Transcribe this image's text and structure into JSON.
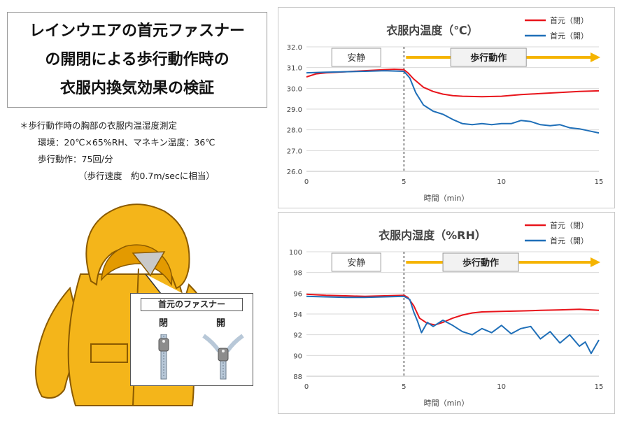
{
  "title": {
    "lines": [
      "レインウエアの首元ファスナー",
      "の開閉による歩行動作時の",
      "衣服内換気効果の検証"
    ]
  },
  "notes": {
    "line1": "＊歩行動作時の胸部の衣服内温湿度測定",
    "line2": "環境：20℃×65%RH、マネキン温度：36℃",
    "line3": "歩行動作：75回/分",
    "line4": "（歩行速度　約0.7m/secに相当）"
  },
  "zipper_callout": {
    "title": "首元のファスナー",
    "closed_label": "閉",
    "open_label": "開"
  },
  "colors": {
    "closed": "#e8141b",
    "open": "#1f6fb8",
    "arrow": "#f5b400",
    "raincoat": "#f4b51a"
  },
  "chart_data": [
    {
      "type": "line",
      "title": "衣服内温度（℃）",
      "xlabel": "時間（min）",
      "ylabel": "",
      "xlim": [
        0,
        15
      ],
      "ylim": [
        26.0,
        32.0
      ],
      "xticks": [
        "0",
        "5",
        "10",
        "15"
      ],
      "yticks": [
        "26.0",
        "27.0",
        "28.0",
        "29.0",
        "30.0",
        "31.0",
        "32.0"
      ],
      "grid": true,
      "legend_position": "top-right",
      "phase_labels": {
        "rest": "安静",
        "walk": "歩行動作"
      },
      "phase_change_x": 5,
      "series": [
        {
          "name": "首元（閉）",
          "color": "#e8141b",
          "x": [
            0,
            0.5,
            1,
            2,
            3,
            4,
            4.5,
            5,
            5.2,
            5.5,
            6,
            6.5,
            7,
            7.5,
            8,
            9,
            10,
            11,
            12,
            13,
            14,
            15
          ],
          "values": [
            30.55,
            30.7,
            30.75,
            30.8,
            30.85,
            30.9,
            30.92,
            30.9,
            30.75,
            30.45,
            30.05,
            29.85,
            29.72,
            29.65,
            29.62,
            29.6,
            29.62,
            29.7,
            29.75,
            29.8,
            29.85,
            29.88
          ]
        },
        {
          "name": "首元（開）",
          "color": "#1f6fb8",
          "x": [
            0,
            1,
            2,
            3,
            4,
            5,
            5.3,
            5.6,
            6,
            6.5,
            7,
            7.5,
            8,
            8.5,
            9,
            9.5,
            10,
            10.5,
            11,
            11.5,
            12,
            12.5,
            13,
            13.5,
            14,
            14.5,
            15
          ],
          "values": [
            30.75,
            30.78,
            30.8,
            30.82,
            30.85,
            30.82,
            30.5,
            29.8,
            29.2,
            28.9,
            28.75,
            28.5,
            28.3,
            28.25,
            28.3,
            28.25,
            28.3,
            28.3,
            28.45,
            28.4,
            28.25,
            28.2,
            28.25,
            28.1,
            28.05,
            27.95,
            27.85
          ]
        }
      ]
    },
    {
      "type": "line",
      "title": "衣服内湿度（%RH）",
      "xlabel": "時間（min）",
      "ylabel": "",
      "xlim": [
        0,
        15
      ],
      "ylim": [
        88,
        100
      ],
      "xticks": [
        "0",
        "5",
        "10",
        "15"
      ],
      "yticks": [
        "88",
        "90",
        "92",
        "94",
        "96",
        "98",
        "100"
      ],
      "grid": true,
      "legend_position": "top-right",
      "phase_labels": {
        "rest": "安静",
        "walk": "歩行動作"
      },
      "phase_change_x": 5,
      "series": [
        {
          "name": "首元（閉）",
          "color": "#e8141b",
          "x": [
            0,
            1,
            2,
            3,
            4,
            5,
            5.2,
            5.5,
            5.8,
            6.2,
            6.6,
            7,
            7.5,
            8,
            8.5,
            9,
            10,
            11,
            12,
            13,
            14,
            15
          ],
          "values": [
            95.9,
            95.8,
            95.75,
            95.7,
            95.75,
            95.8,
            95.6,
            94.8,
            93.6,
            93.1,
            92.95,
            93.2,
            93.6,
            93.9,
            94.1,
            94.2,
            94.25,
            94.3,
            94.35,
            94.4,
            94.45,
            94.35
          ]
        },
        {
          "name": "首元（開）",
          "color": "#1f6fb8",
          "x": [
            0,
            1,
            2,
            3,
            4,
            5,
            5.3,
            5.5,
            5.7,
            5.9,
            6.2,
            6.5,
            7,
            7.5,
            8,
            8.5,
            9,
            9.5,
            10,
            10.5,
            11,
            11.5,
            12,
            12.5,
            13,
            13.5,
            14,
            14.3,
            14.6,
            15
          ],
          "values": [
            95.7,
            95.65,
            95.6,
            95.6,
            95.65,
            95.7,
            95.4,
            94.2,
            93.3,
            92.2,
            93.2,
            92.8,
            93.4,
            92.9,
            92.3,
            92.0,
            92.6,
            92.2,
            92.9,
            92.1,
            92.6,
            92.8,
            91.6,
            92.3,
            91.2,
            92.0,
            90.9,
            91.3,
            90.2,
            91.5
          ]
        }
      ]
    }
  ]
}
